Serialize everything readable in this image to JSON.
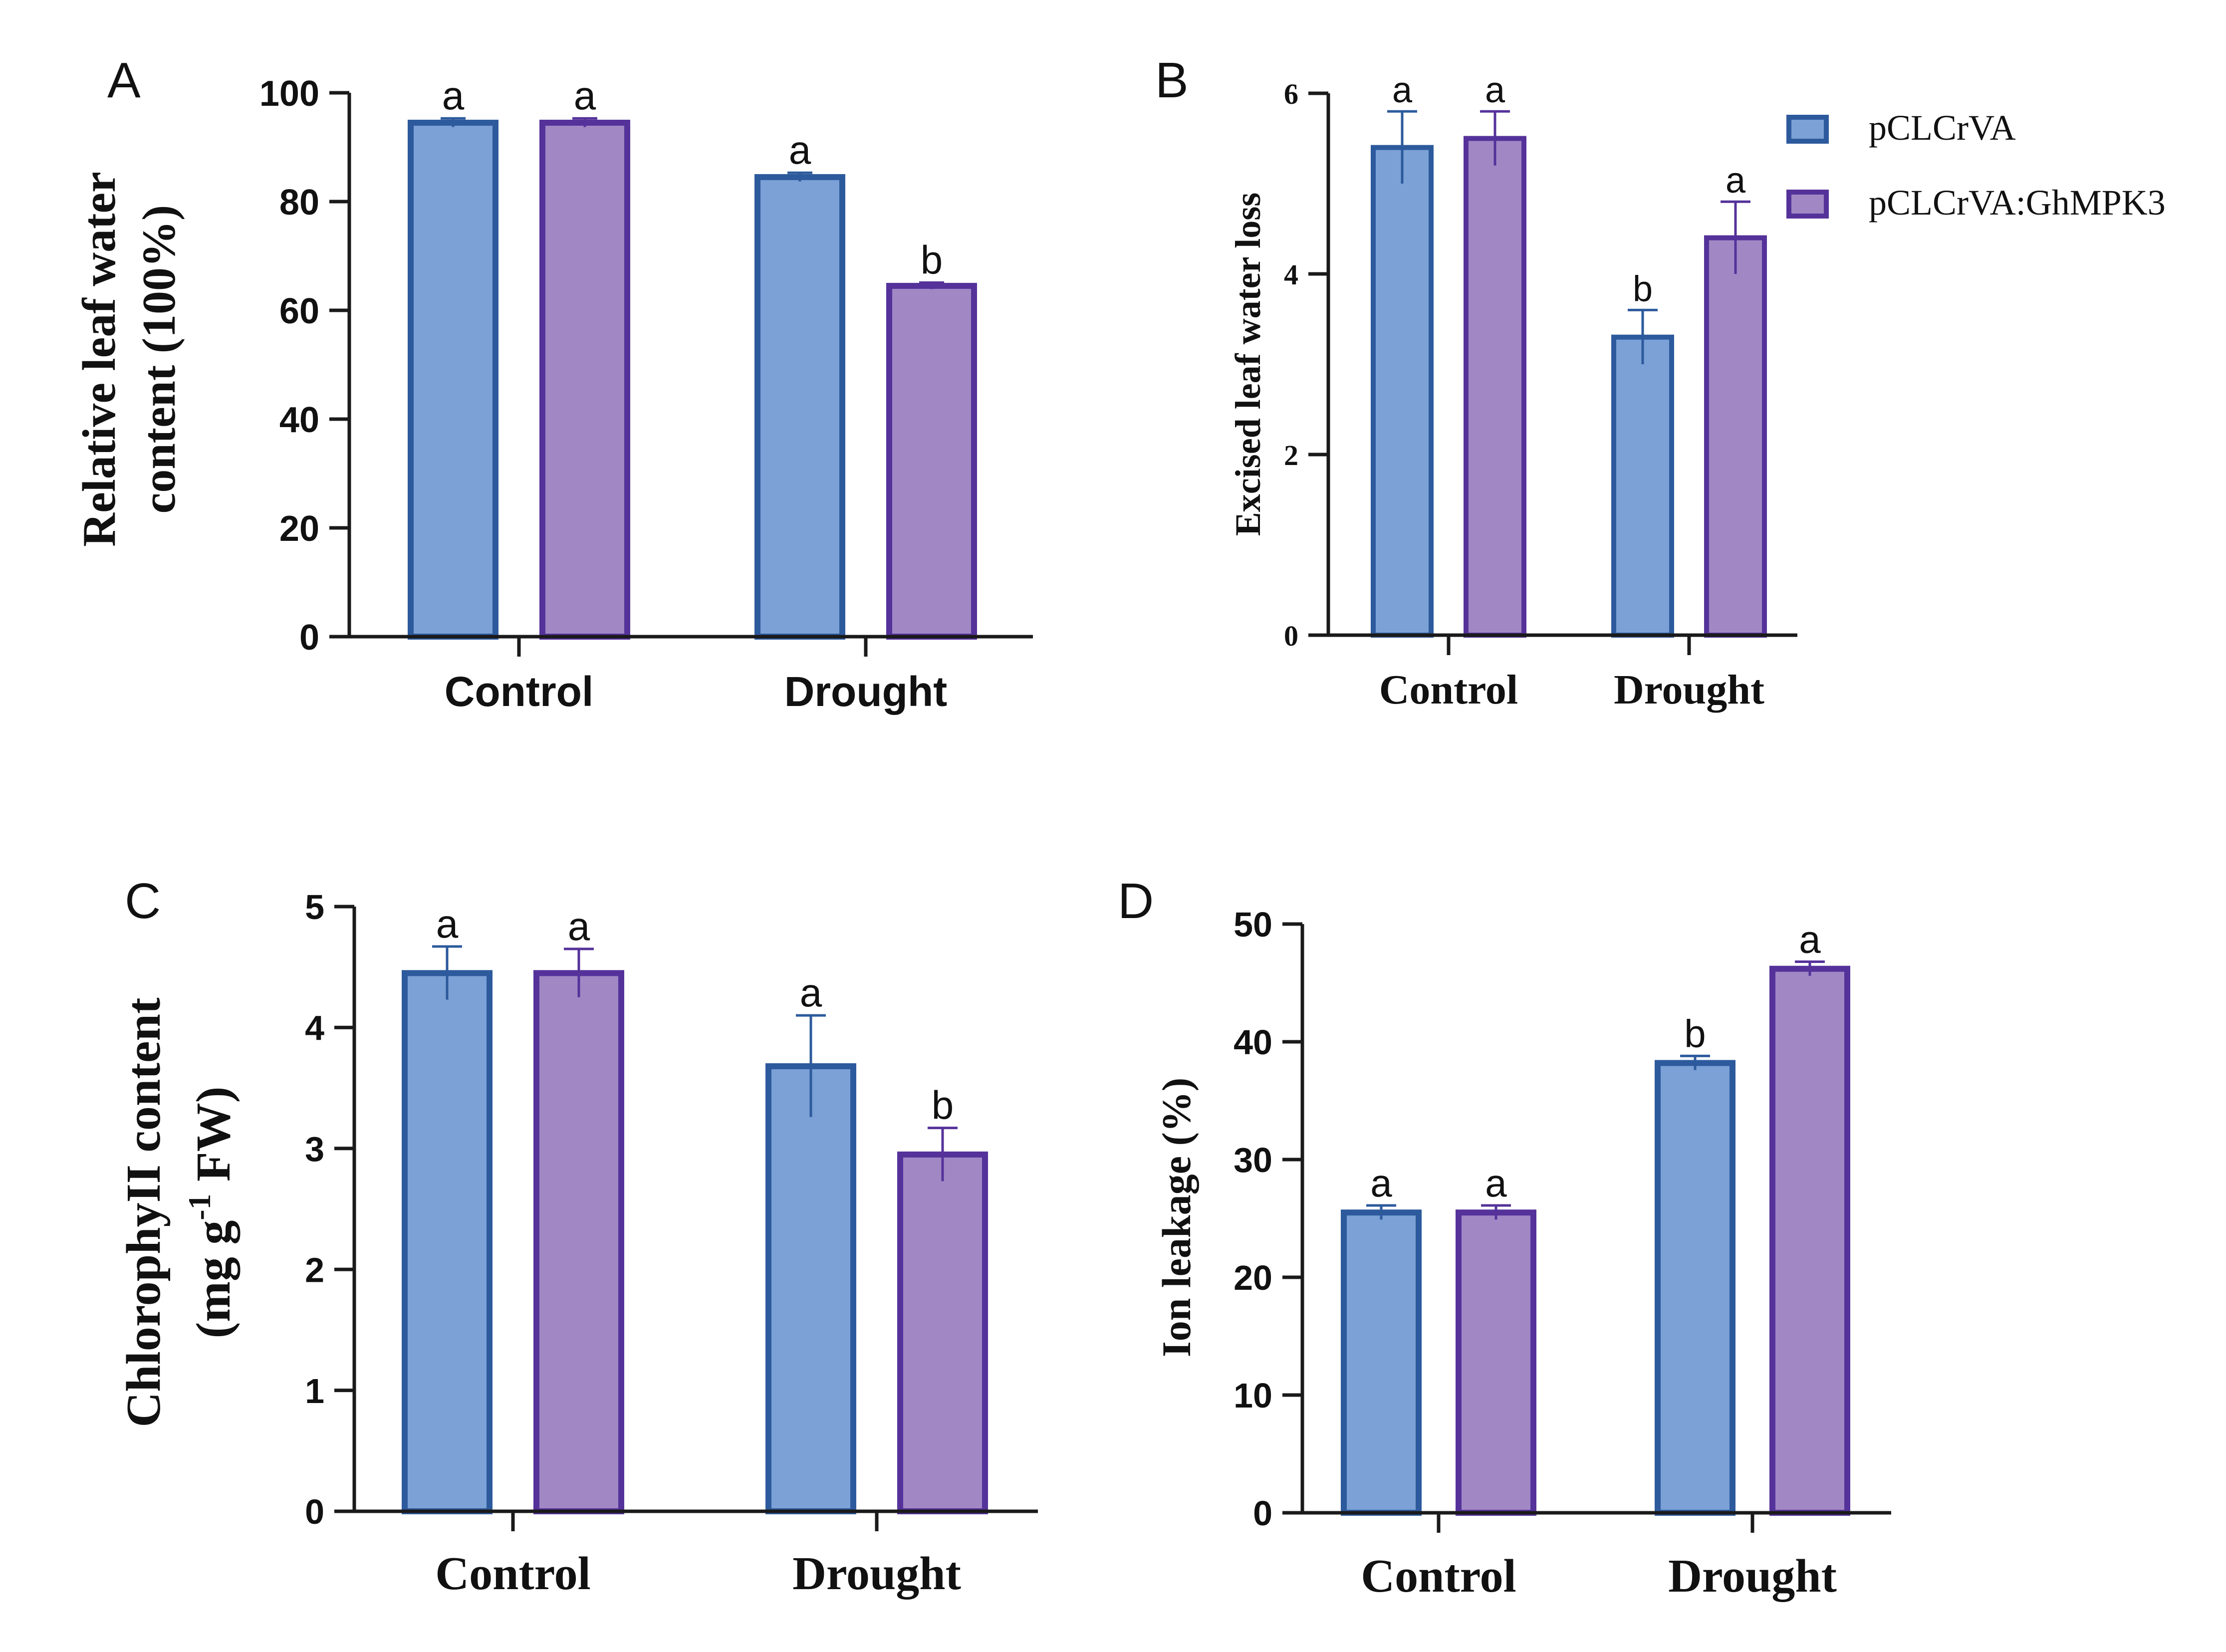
{
  "figure": {
    "legend": [
      {
        "label": "pCLCrVA",
        "color": "#7ba1d6",
        "edge": "#2d5a9c"
      },
      {
        "label": "pCLCrVA:GhMPK3",
        "color": "#a188c5",
        "edge": "#55329a"
      }
    ]
  },
  "chart_data": [
    {
      "type": "bar",
      "panel_label": "A",
      "ylabel_lines": [
        "Relative leaf water",
        "content (100%)"
      ],
      "categories": [
        "Control",
        "Drought"
      ],
      "series": [
        {
          "name": "pCLCrVA",
          "values": [
            94.5,
            84.5
          ],
          "errors": [
            0.8,
            0.8
          ],
          "letters": [
            "a",
            "a"
          ]
        },
        {
          "name": "pCLCrVA:GhMPK3",
          "values": [
            94.5,
            64.5
          ],
          "errors": [
            0.8,
            0.6
          ],
          "letters": [
            "a",
            "b"
          ]
        }
      ],
      "ylim": [
        0,
        100
      ],
      "yticks": [
        "0",
        "20",
        "40",
        "60",
        "80",
        "100"
      ],
      "grid": false
    },
    {
      "type": "bar",
      "panel_label": "B",
      "ylabel_lines": [
        "Excised leaf water loss"
      ],
      "categories": [
        "Control",
        "Drought"
      ],
      "series": [
        {
          "name": "pCLCrVA",
          "values": [
            5.4,
            3.3
          ],
          "errors": [
            0.4,
            0.3
          ],
          "letters": [
            "a",
            "b"
          ]
        },
        {
          "name": "pCLCrVA:GhMPK3",
          "values": [
            5.5,
            4.4
          ],
          "errors": [
            0.3,
            0.4
          ],
          "letters": [
            "a",
            "a"
          ]
        }
      ],
      "ylim": [
        0,
        6
      ],
      "yticks": [
        "0",
        "2",
        "4",
        "6"
      ],
      "legend_position": "top-right",
      "grid": false
    },
    {
      "type": "bar",
      "panel_label": "C",
      "ylabel_lines": [
        "ChlorophyII content",
        "(mg g-1 FW)"
      ],
      "ylabel_superscript": "-1",
      "categories": [
        "Control",
        "Drought"
      ],
      "series": [
        {
          "name": "pCLCrVA",
          "values": [
            4.45,
            3.68
          ],
          "errors": [
            0.22,
            0.42
          ],
          "letters": [
            "a",
            "a"
          ]
        },
        {
          "name": "pCLCrVA:GhMPK3",
          "values": [
            4.45,
            2.95
          ],
          "errors": [
            0.2,
            0.22
          ],
          "letters": [
            "a",
            "b"
          ]
        }
      ],
      "ylim": [
        0,
        5
      ],
      "yticks": [
        "0",
        "1",
        "2",
        "3",
        "4",
        "5"
      ],
      "grid": false
    },
    {
      "type": "bar",
      "panel_label": "D",
      "ylabel_lines": [
        "Ion leakage (%)"
      ],
      "categories": [
        "Control",
        "Drought"
      ],
      "series": [
        {
          "name": "pCLCrVA",
          "values": [
            25.5,
            38.2
          ],
          "errors": [
            0.6,
            0.6
          ],
          "letters": [
            "a",
            "b"
          ]
        },
        {
          "name": "pCLCrVA:GhMPK3",
          "values": [
            25.5,
            46.2
          ],
          "errors": [
            0.6,
            0.6
          ],
          "letters": [
            "a",
            "a"
          ]
        }
      ],
      "ylim": [
        0,
        50
      ],
      "yticks": [
        "0",
        "10",
        "20",
        "30",
        "40",
        "50"
      ],
      "grid": false
    }
  ]
}
